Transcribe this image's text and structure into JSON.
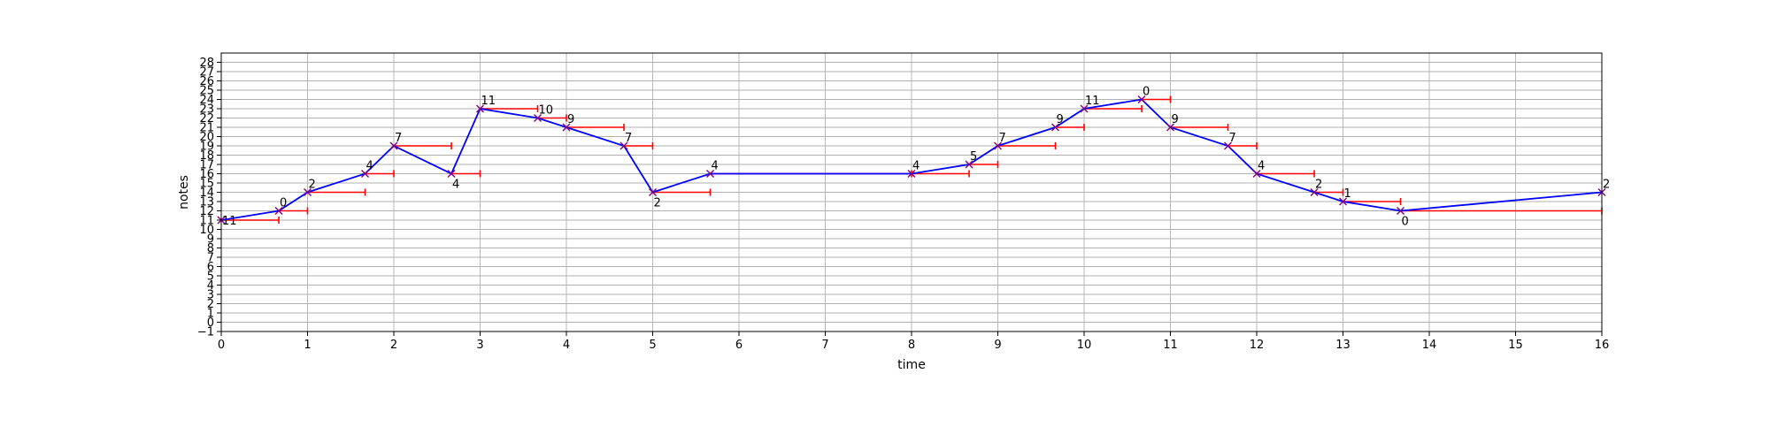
{
  "chart_data": {
    "type": "line",
    "title": "",
    "xlabel": "time",
    "ylabel": "notes",
    "xlim": [
      0,
      16
    ],
    "ylim": [
      -1,
      29
    ],
    "x_ticks": [
      0,
      1,
      2,
      3,
      4,
      5,
      6,
      7,
      8,
      9,
      10,
      11,
      12,
      13,
      14,
      15,
      16
    ],
    "y_ticks": [
      -1,
      0,
      1,
      2,
      3,
      4,
      5,
      6,
      7,
      8,
      9,
      10,
      11,
      12,
      13,
      14,
      15,
      16,
      17,
      18,
      19,
      20,
      21,
      22,
      23,
      24,
      25,
      26,
      27,
      28
    ],
    "grid": true,
    "line_color": "#0000ff",
    "marker_color": "#800080",
    "duration_color": "#ff0000",
    "notes": [
      {
        "t": 0,
        "dur": 0.667,
        "pitch": 11,
        "label": "11"
      },
      {
        "t": 0.667,
        "dur": 0.333,
        "pitch": 12,
        "label": "0"
      },
      {
        "t": 1,
        "dur": 0.667,
        "pitch": 14,
        "label": "2"
      },
      {
        "t": 1.667,
        "dur": 0.333,
        "pitch": 16,
        "label": "4"
      },
      {
        "t": 2,
        "dur": 0.667,
        "pitch": 19,
        "label": "7"
      },
      {
        "t": 2.667,
        "dur": 0.333,
        "pitch": 16,
        "label": "4"
      },
      {
        "t": 3,
        "dur": 0.667,
        "pitch": 23,
        "label": "11"
      },
      {
        "t": 3.667,
        "dur": 0.333,
        "pitch": 22,
        "label": "10"
      },
      {
        "t": 4,
        "dur": 0.667,
        "pitch": 21,
        "label": "9"
      },
      {
        "t": 4.667,
        "dur": 0.333,
        "pitch": 19,
        "label": "7"
      },
      {
        "t": 5,
        "dur": 0.667,
        "pitch": 14,
        "label": "2"
      },
      {
        "t": 5.667,
        "dur": 2.333,
        "pitch": 16,
        "label": "4"
      },
      {
        "t": 8,
        "dur": 0.667,
        "pitch": 16,
        "label": "4"
      },
      {
        "t": 8.667,
        "dur": 0.333,
        "pitch": 17,
        "label": "5"
      },
      {
        "t": 9,
        "dur": 0.667,
        "pitch": 19,
        "label": "7"
      },
      {
        "t": 9.667,
        "dur": 0.333,
        "pitch": 21,
        "label": "9"
      },
      {
        "t": 10,
        "dur": 0.667,
        "pitch": 23,
        "label": "11"
      },
      {
        "t": 10.667,
        "dur": 0.333,
        "pitch": 24,
        "label": "0"
      },
      {
        "t": 11,
        "dur": 0.667,
        "pitch": 21,
        "label": "9"
      },
      {
        "t": 11.667,
        "dur": 0.333,
        "pitch": 19,
        "label": "7"
      },
      {
        "t": 12,
        "dur": 0.667,
        "pitch": 16,
        "label": "4"
      },
      {
        "t": 12.667,
        "dur": 0.333,
        "pitch": 14,
        "label": "2"
      },
      {
        "t": 13,
        "dur": 0.667,
        "pitch": 13,
        "label": "1"
      },
      {
        "t": 13.667,
        "dur": 2.333,
        "pitch": 12,
        "label": "0"
      },
      {
        "t": 16,
        "dur": 0,
        "pitch": 14,
        "label": "2"
      }
    ]
  }
}
